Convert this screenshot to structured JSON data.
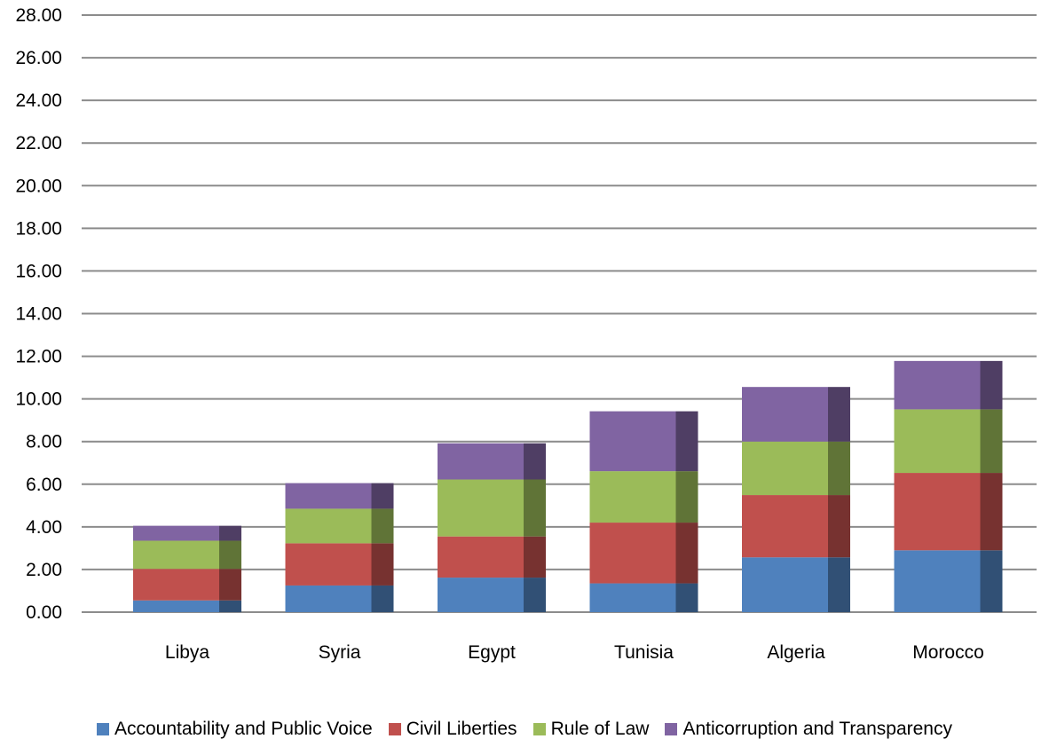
{
  "chart_data": {
    "type": "bar",
    "stacked": true,
    "categories": [
      "Libya",
      "Syria",
      "Egypt",
      "Tunisia",
      "Algeria",
      "Morocco"
    ],
    "series": [
      {
        "name": "Accountability and Public Voice",
        "color": "#4f81bd",
        "values": [
          0.55,
          1.25,
          1.62,
          1.35,
          2.57,
          2.9
        ]
      },
      {
        "name": "Civil Liberties",
        "color": "#c0504d",
        "values": [
          1.48,
          1.98,
          1.93,
          2.85,
          2.92,
          3.63
        ]
      },
      {
        "name": "Rule of Law",
        "color": "#9bbb59",
        "values": [
          1.32,
          1.62,
          2.67,
          2.41,
          2.51,
          2.98
        ]
      },
      {
        "name": "Anticorruption and Transparency",
        "color": "#8064a2",
        "values": [
          0.7,
          1.2,
          1.7,
          2.81,
          2.56,
          2.27
        ]
      }
    ],
    "y_ticks": [
      "0.00",
      "2.00",
      "4.00",
      "6.00",
      "8.00",
      "10.00",
      "12.00",
      "14.00",
      "16.00",
      "18.00",
      "20.00",
      "22.00",
      "24.00",
      "26.00",
      "28.00"
    ],
    "ylim": [
      0,
      28
    ],
    "grid": true,
    "legend_position": "bottom"
  }
}
